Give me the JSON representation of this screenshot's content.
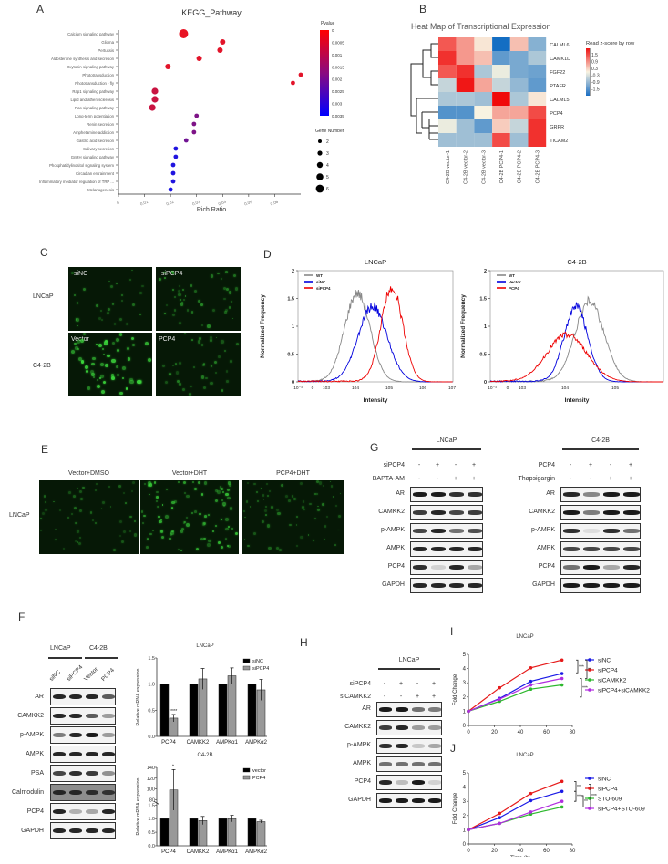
{
  "panels": {
    "A": {
      "letter": "A"
    },
    "B": {
      "letter": "B"
    },
    "C": {
      "letter": "C",
      "row_labels": [
        "LNCaP",
        "C4-2B"
      ],
      "image_labels": [
        "siNC",
        "siPCP4",
        "Vector",
        "PCP4"
      ]
    },
    "D": {
      "letter": "D"
    },
    "E": {
      "letter": "E",
      "row_label": "LNCaP",
      "column_labels": [
        "Vector+DMSO",
        "Vector+DHT",
        "PCP4+DHT"
      ]
    },
    "F": {
      "letter": "F",
      "groups": [
        "LNCaP",
        "C4-2B"
      ],
      "lanes": [
        "siNC",
        "siPCP4",
        "Vector",
        "PCP4"
      ],
      "blots": [
        "AR",
        "CAMKK2",
        "p-AMPK",
        "AMPK",
        "PSA",
        "Calmodulin",
        "PCP4",
        "GAPDH"
      ]
    },
    "G": {
      "letter": "G",
      "left": {
        "cell_line": "LNCaP",
        "treatments": [
          {
            "name": "siPCP4",
            "signs": [
              "-",
              "+",
              "-",
              "+"
            ]
          },
          {
            "name": "BAPTA-AM",
            "signs": [
              "-",
              "-",
              "+",
              "+"
            ]
          }
        ],
        "blots": [
          "AR",
          "CAMKK2",
          "p-AMPK",
          "AMPK",
          "PCP4",
          "GAPDH"
        ]
      },
      "right": {
        "cell_line": "C4-2B",
        "treatments": [
          {
            "name": "PCP4",
            "signs": [
              "-",
              "+",
              "-",
              "+"
            ]
          },
          {
            "name": "Thapsigargin",
            "signs": [
              "-",
              "-",
              "+",
              "+"
            ]
          }
        ],
        "blots": [
          "AR",
          "CAMKK2",
          "p-AMPK",
          "AMPK",
          "PCP4",
          "GAPDH"
        ]
      }
    },
    "H": {
      "letter": "H",
      "cell_line": "LNCaP",
      "treatments": [
        {
          "name": "siPCP4",
          "signs": [
            "-",
            "+",
            "-",
            "+"
          ]
        },
        {
          "name": "siCAMKK2",
          "signs": [
            "-",
            "-",
            "+",
            "+"
          ]
        }
      ],
      "blots": [
        "AR",
        "CAMKK2",
        "p-AMPK",
        "AMPK",
        "PCP4",
        "GAPDH"
      ]
    },
    "I": {
      "letter": "I"
    },
    "J": {
      "letter": "J"
    }
  },
  "chart_data": [
    {
      "panel": "A",
      "type": "scatter",
      "title": "KEGG_Pathway",
      "xlabel": "Rich Ratio",
      "ylabel": "",
      "xlim": [
        0,
        0.07
      ],
      "xticks": [
        "0",
        "0.01",
        "0.02",
        "0.03",
        "0.04",
        "0.05",
        "0.06"
      ],
      "color_legend": {
        "title": "Pvalue",
        "ticks": [
          "0",
          "0.0005",
          "0.001",
          "0.0015",
          "0.002",
          "0.0025",
          "0.003",
          "0.0035"
        ],
        "colors": [
          "#ff0000",
          "#0000ff"
        ]
      },
      "size_legend": {
        "title": "Gene Number",
        "values": [
          2,
          3,
          4,
          5,
          6
        ]
      },
      "categories": [
        "Calcium signaling pathway",
        "Glioma",
        "Pertussis",
        "Aldosterone synthesis and secretion",
        "Oxytocin signaling pathway",
        "Phototransduction",
        "Phototransduction - fly",
        "Rap1 signaling pathway",
        "Lipid and atherosclerosis",
        "Ras signaling pathway",
        "Long-term potentiation",
        "Renin secretion",
        "Amphetamine addiction",
        "Gastric acid secretion",
        "Salivary secretion",
        "GnRH signaling pathway",
        "Phosphatidylinositol signaling system",
        "Circadian entrainment",
        "Inflammatory mediator regulation of TRP ...",
        "Melanogenesis"
      ],
      "rich_ratio": [
        0.025,
        0.04,
        0.039,
        0.031,
        0.019,
        0.07,
        0.067,
        0.014,
        0.014,
        0.013,
        0.03,
        0.029,
        0.029,
        0.026,
        0.022,
        0.022,
        0.021,
        0.021,
        0.021,
        0.02
      ],
      "pvalue": [
        0.0001,
        0.0002,
        0.0002,
        0.0002,
        0.0002,
        0.0002,
        0.0002,
        0.0006,
        0.0006,
        0.0006,
        0.0018,
        0.0018,
        0.0018,
        0.002,
        0.0033,
        0.0033,
        0.0033,
        0.0033,
        0.0033,
        0.0034
      ],
      "gene_number": [
        6,
        3,
        3,
        3,
        3,
        2,
        2,
        4,
        4,
        4,
        2,
        2,
        2,
        2,
        2,
        2,
        2,
        2,
        2,
        2
      ]
    },
    {
      "panel": "B",
      "type": "heatmap",
      "title": "Heat Map of Transcriptional Expression",
      "legend_title": "Read z-score by row",
      "legend_ticks": [
        "1.5",
        "0.9",
        "0.3",
        "-0.3",
        "-0.9",
        "-1.5"
      ],
      "rows": [
        "CALML6",
        "CAMK1D",
        "FGF22",
        "PTAFR",
        "CALML5",
        "PCP4",
        "GRPR",
        "TICAM2"
      ],
      "columns": [
        "C4-2B vector-1",
        "C4-2B vector-2",
        "C4-2B vector-3",
        "C4-2B PCP4-1",
        "C4-2B PCP4-2",
        "C4-2B PCP4-3"
      ],
      "values": [
        [
          1.2,
          0.7,
          0.1,
          -1.8,
          0.4,
          -0.9
        ],
        [
          1.5,
          0.7,
          0.4,
          -1.2,
          -1.0,
          -0.6
        ],
        [
          1.2,
          1.5,
          -0.6,
          -0.1,
          -1.0,
          -1.1
        ],
        [
          -0.4,
          1.7,
          0.6,
          -0.4,
          -0.8,
          -1.2
        ],
        [
          -0.6,
          -0.6,
          -0.7,
          1.8,
          -0.6,
          0.1
        ],
        [
          -1.3,
          -1.3,
          0.0,
          0.6,
          0.6,
          1.3
        ],
        [
          -0.1,
          -0.7,
          -1.2,
          0.3,
          -0.4,
          1.5
        ],
        [
          -0.7,
          -0.7,
          -0.7,
          1.3,
          -0.7,
          1.5
        ]
      ]
    },
    {
      "panel": "D-left",
      "type": "line",
      "title": "LNCaP",
      "xlabel": "Intensity",
      "ylabel": "Normalized Frequency",
      "xticks": [
        "10^-3",
        "0",
        "10^3",
        "10^4",
        "10^5",
        "10^6",
        "10^7"
      ],
      "yticks": [
        "0",
        "0.5",
        "1",
        "1.5",
        "2"
      ],
      "ylim": [
        0,
        2
      ],
      "series": [
        {
          "name": "WT",
          "color": "#888888",
          "peak_x": "3x10^4",
          "peak_y": 1.8
        },
        {
          "name": "siNC",
          "color": "#0000dd",
          "peak_x": "5x10^4",
          "peak_y": 1.4
        },
        {
          "name": "siPCP4",
          "color": "#ee0000",
          "peak_x": "1x10^5",
          "peak_y": 1.8
        }
      ]
    },
    {
      "panel": "D-right",
      "type": "line",
      "title": "C4-2B",
      "xlabel": "Intensity",
      "ylabel": "Normalized Frequency",
      "xticks": [
        "10^-3",
        "0",
        "10^3",
        "10^4",
        "10^5"
      ],
      "yticks": [
        "0",
        "0.5",
        "1",
        "1.5",
        "2"
      ],
      "ylim": [
        0,
        2
      ],
      "series": [
        {
          "name": "WT",
          "color": "#888888",
          "peak_x": "3x10^4",
          "peak_y": 1.6
        },
        {
          "name": "Vector",
          "color": "#0000dd",
          "peak_x": "1.8x10^4",
          "peak_y": 1.45
        },
        {
          "name": "PCP4",
          "color": "#ee0000",
          "peak_x": "1.3x10^4",
          "peak_y": 0.9
        }
      ]
    },
    {
      "panel": "F-top",
      "type": "bar",
      "title": "LNCaP",
      "ylabel": "Relative mRNA expression",
      "categories": [
        "PCP4",
        "CAMKK2",
        "AMPKα1",
        "AMPKα2"
      ],
      "ylim": [
        0,
        1.5
      ],
      "yticks": [
        "0.0",
        "0.5",
        "1.0",
        "1.5"
      ],
      "series": [
        {
          "name": "siNC",
          "color": "#000000",
          "values": [
            1.0,
            1.0,
            1.0,
            1.0
          ]
        },
        {
          "name": "siPCP4",
          "color": "#999999",
          "values": [
            0.35,
            1.1,
            1.16,
            0.89
          ],
          "errors": [
            0.07,
            0.2,
            0.15,
            0.2
          ]
        }
      ],
      "annotations": [
        "****"
      ]
    },
    {
      "panel": "F-bottom",
      "type": "bar",
      "title": "C4-2B",
      "ylabel": "Relative mRNA expression",
      "categories": [
        "PCP4",
        "CAMKK2",
        "AMPKα1",
        "AMPKα2"
      ],
      "yticks": [
        "0.0",
        "0.5",
        "1.0",
        "1.5",
        "80",
        "100",
        "120",
        "140"
      ],
      "series": [
        {
          "name": "vector",
          "color": "#000000",
          "values": [
            1.0,
            1.0,
            1.0,
            1.0
          ]
        },
        {
          "name": "PCP4",
          "color": "#999999",
          "values": [
            98,
            0.93,
            1.0,
            0.89
          ],
          "errors": [
            38,
            0.15,
            0.12,
            0.05
          ]
        }
      ],
      "annotations": [
        "*"
      ]
    },
    {
      "panel": "I",
      "type": "line",
      "title": "LNCaP",
      "xlabel": "Time (h)",
      "ylabel": "Fold Change",
      "x": [
        0,
        24,
        48,
        72
      ],
      "xlim": [
        0,
        80
      ],
      "ylim": [
        0,
        5
      ],
      "xticks": [
        "0",
        "20",
        "40",
        "60",
        "80"
      ],
      "yticks": [
        "0",
        "1",
        "2",
        "3",
        "4",
        "5"
      ],
      "series": [
        {
          "name": "siNC",
          "color": "#1a1ae6",
          "values": [
            1.0,
            1.9,
            3.1,
            3.65
          ]
        },
        {
          "name": "siPCP4",
          "color": "#e61a1a",
          "values": [
            1.0,
            2.65,
            4.05,
            4.6
          ]
        },
        {
          "name": "siCAMKK2",
          "color": "#2db82d",
          "values": [
            1.0,
            1.7,
            2.55,
            2.85
          ]
        },
        {
          "name": "siPCP4+siCAMKK2",
          "color": "#b02de0",
          "values": [
            1.0,
            1.85,
            2.85,
            3.3
          ]
        }
      ],
      "annotations": [
        "***",
        "**",
        "***"
      ]
    },
    {
      "panel": "J",
      "type": "line",
      "title": "LNCaP",
      "xlabel": "Time (h)",
      "ylabel": "Fold Change",
      "x": [
        0,
        24,
        48,
        72
      ],
      "xlim": [
        0,
        80
      ],
      "ylim": [
        0,
        5
      ],
      "xticks": [
        "0",
        "20",
        "40",
        "60",
        "80"
      ],
      "yticks": [
        "0",
        "1",
        "2",
        "3",
        "4",
        "5"
      ],
      "series": [
        {
          "name": "siNC",
          "color": "#1a1ae6",
          "values": [
            1.0,
            1.85,
            3.05,
            3.7
          ]
        },
        {
          "name": "siPCP4",
          "color": "#e61a1a",
          "values": [
            1.0,
            2.15,
            3.55,
            4.4
          ]
        },
        {
          "name": "STO-609",
          "color": "#2db82d",
          "values": [
            1.0,
            1.45,
            2.1,
            2.6
          ]
        },
        {
          "name": "siPCP4+STO-609",
          "color": "#b02de0",
          "values": [
            1.0,
            1.45,
            2.25,
            3.0
          ]
        }
      ],
      "annotations": [
        "**",
        "**",
        "***",
        "**"
      ]
    }
  ]
}
